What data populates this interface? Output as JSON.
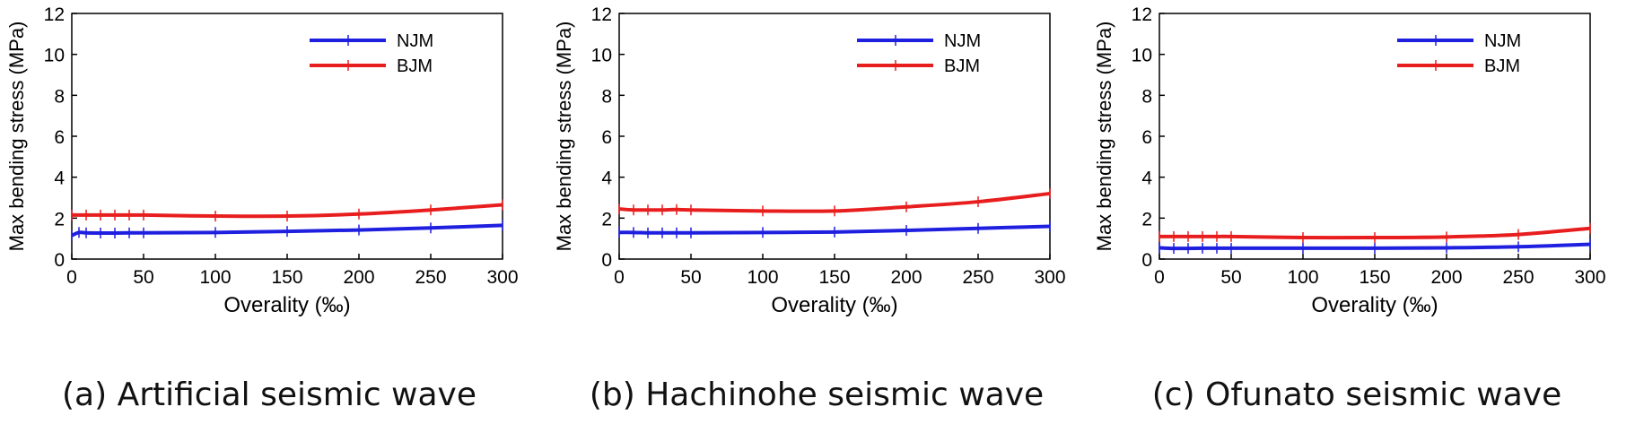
{
  "figure_captions": [
    "(a) Artificial seismic wave",
    "(b) Hachinohe seismic wave",
    "(c) Ofunato seismic wave"
  ],
  "chart_data": [
    {
      "type": "line",
      "caption": "(a) Artificial seismic wave",
      "xlabel": "Overality (‰)",
      "ylabel": "Max bending stress (MPa)",
      "xlim": [
        0,
        300
      ],
      "ylim": [
        0,
        12
      ],
      "xticks": [
        0,
        50,
        100,
        150,
        200,
        250,
        300
      ],
      "yticks": [
        0,
        2,
        4,
        6,
        8,
        10,
        12
      ],
      "legend_position": "top-right",
      "series": [
        {
          "name": "NJM",
          "color": "#1f1fe0",
          "x": [
            0,
            5,
            10,
            20,
            30,
            40,
            50,
            100,
            150,
            200,
            250,
            300
          ],
          "y": [
            1.15,
            1.3,
            1.28,
            1.27,
            1.27,
            1.28,
            1.28,
            1.3,
            1.35,
            1.42,
            1.52,
            1.65
          ]
        },
        {
          "name": "BJM",
          "color": "#e81e1e",
          "x": [
            0,
            10,
            20,
            30,
            40,
            50,
            100,
            150,
            200,
            250,
            300
          ],
          "y": [
            2.15,
            2.15,
            2.15,
            2.15,
            2.15,
            2.15,
            2.1,
            2.1,
            2.2,
            2.4,
            2.65
          ]
        }
      ]
    },
    {
      "type": "line",
      "caption": "(b) Hachinohe seismic wave",
      "xlabel": "Overality (‰)",
      "ylabel": "Max bending stress (MPa)",
      "xlim": [
        0,
        300
      ],
      "ylim": [
        0,
        12
      ],
      "xticks": [
        0,
        50,
        100,
        150,
        200,
        250,
        300
      ],
      "yticks": [
        0,
        2,
        4,
        6,
        8,
        10,
        12
      ],
      "legend_position": "top-right",
      "series": [
        {
          "name": "NJM",
          "color": "#1f1fe0",
          "x": [
            0,
            10,
            20,
            30,
            40,
            50,
            100,
            150,
            200,
            250,
            300
          ],
          "y": [
            1.3,
            1.3,
            1.28,
            1.28,
            1.28,
            1.28,
            1.3,
            1.32,
            1.4,
            1.5,
            1.6
          ]
        },
        {
          "name": "BJM",
          "color": "#e81e1e",
          "x": [
            0,
            10,
            20,
            30,
            40,
            50,
            100,
            150,
            200,
            250,
            300
          ],
          "y": [
            2.45,
            2.4,
            2.4,
            2.4,
            2.42,
            2.4,
            2.35,
            2.35,
            2.55,
            2.8,
            3.2
          ]
        }
      ]
    },
    {
      "type": "line",
      "caption": "(c) Ofunato seismic wave",
      "xlabel": "Overality (‰)",
      "ylabel": "Max bending stress (MPa)",
      "xlim": [
        0,
        300
      ],
      "ylim": [
        0,
        12
      ],
      "xticks": [
        0,
        50,
        100,
        150,
        200,
        250,
        300
      ],
      "yticks": [
        0,
        2,
        4,
        6,
        8,
        10,
        12
      ],
      "legend_position": "top-right",
      "series": [
        {
          "name": "NJM",
          "color": "#1f1fe0",
          "x": [
            0,
            10,
            20,
            30,
            40,
            50,
            100,
            150,
            200,
            250,
            300
          ],
          "y": [
            0.55,
            0.52,
            0.52,
            0.53,
            0.53,
            0.53,
            0.53,
            0.53,
            0.55,
            0.6,
            0.72
          ]
        },
        {
          "name": "BJM",
          "color": "#e81e1e",
          "x": [
            0,
            10,
            20,
            30,
            40,
            50,
            100,
            150,
            200,
            250,
            300
          ],
          "y": [
            1.1,
            1.1,
            1.1,
            1.1,
            1.1,
            1.1,
            1.05,
            1.05,
            1.08,
            1.2,
            1.5
          ]
        }
      ]
    }
  ]
}
